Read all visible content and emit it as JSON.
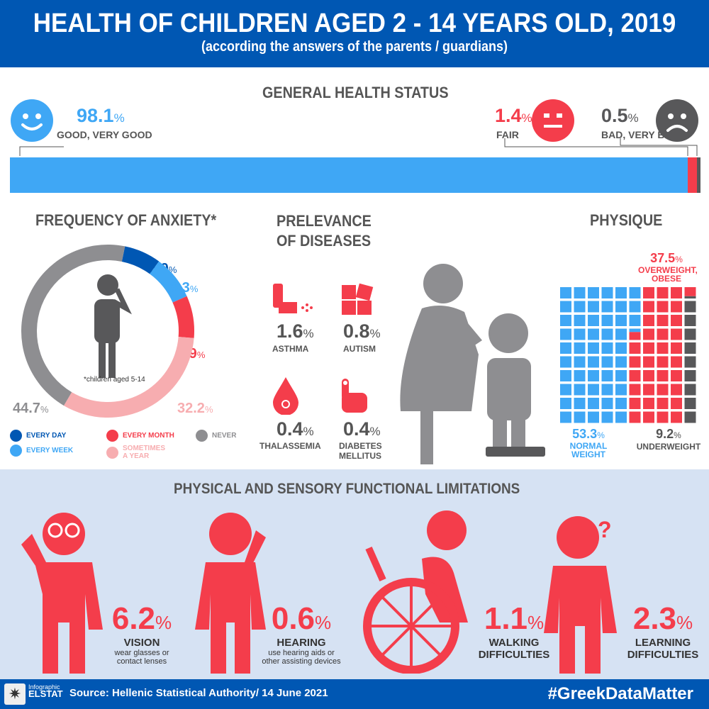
{
  "header": {
    "title": "HEALTH OF CHILDREN AGED 2 - 14 YEARS OLD, 2019",
    "subtitle": "(according the answers of the parents / guardians)"
  },
  "general": {
    "title": "GENERAL HEALTH STATUS",
    "good": {
      "value": "98.1",
      "unit": "%",
      "label": "GOOD, VERY GOOD"
    },
    "fair": {
      "value": "1.4",
      "unit": "%",
      "label": "FAIR"
    },
    "bad": {
      "value": "0.5",
      "unit": "%",
      "label": "BAD, VERY BAD"
    }
  },
  "anxiety": {
    "title": "FREQUENCY OF ANXIETY*",
    "note": "*children aged 5-14"
  },
  "diseases": {
    "title_line1": "PRELEVANCE",
    "title_line2": "OF DISEASES",
    "items": [
      {
        "value": "1.6",
        "unit": "%",
        "label": "ASTHMA"
      },
      {
        "value": "0.8",
        "unit": "%",
        "label": "AUTISM"
      },
      {
        "value": "0.4",
        "unit": "%",
        "label": "THALASSEMIA"
      },
      {
        "value": "0.4",
        "unit": "%",
        "label1": "DIABETES",
        "label2": "MELLITUS"
      }
    ]
  },
  "physique": {
    "title": "PHYSIQUE",
    "overweight": {
      "value": "37.5",
      "unit": "%",
      "label1": "OVERWEIGHT,",
      "label2": "OBESE"
    },
    "normal": {
      "value": "53.3",
      "unit": "%",
      "label1": "NORMAL",
      "label2": "WEIGHT"
    },
    "under": {
      "value": "9.2",
      "unit": "%",
      "label": "UNDERWEIGHT"
    }
  },
  "limitations": {
    "title": "PHYSICAL AND SENSORY FUNCTIONAL LIMITATIONS",
    "items": [
      {
        "value": "6.2",
        "unit": "%",
        "name": "VISION",
        "desc1": "wear glasses or",
        "desc2": "contact lenses"
      },
      {
        "value": "0.6",
        "unit": "%",
        "name": "HEARING",
        "desc1": "use hearing aids or",
        "desc2": "other assisting devices"
      },
      {
        "value": "1.1",
        "unit": "%",
        "name": "WALKING",
        "desc1": "DIFFICULTIES"
      },
      {
        "value": "2.3",
        "unit": "%",
        "name": "LEARNING",
        "desc1": "DIFFICULTIES"
      }
    ]
  },
  "footer": {
    "logo_top": "Infographic",
    "logo_bottom": "ELSTAT",
    "source": "Source: Hellenic Statistical Authority/ 14 June 2021",
    "hashtag": "#GreekDataMatter"
  },
  "colors": {
    "blue": "#0057b3",
    "light_blue": "#3fa7f5",
    "red": "#f43d4b",
    "pink": "#f7adb0",
    "gray": "#8e8e91",
    "dark": "#58585a"
  },
  "chart_data": [
    {
      "type": "bar",
      "title": "GENERAL HEALTH STATUS",
      "categories": [
        "GOOD, VERY GOOD",
        "FAIR",
        "BAD, VERY BAD"
      ],
      "values": [
        98.1,
        1.4,
        0.5
      ],
      "stacked": true
    },
    {
      "type": "pie",
      "title": "FREQUENCY OF ANXIETY*",
      "categories": [
        "EVERY DAY",
        "EVERY WEEK",
        "EVERY MONTH",
        "SOMETIMES A YEAR",
        "NEVER"
      ],
      "legend_labels": [
        "EVERY DAY",
        "EVERY WEEK",
        "EVERY MONTH",
        "SOMETIMES",
        "A YEAR",
        "NEVER"
      ],
      "values": [
        6.9,
        8.3,
        7.9,
        32.2,
        44.7
      ],
      "labels": [
        "6.9",
        "8.3",
        "7.9",
        "32.2",
        "44.7"
      ],
      "colors": [
        "#0057b3",
        "#3fa7f5",
        "#f43d4b",
        "#f7adb0",
        "#8e8e91"
      ]
    },
    {
      "type": "waffle",
      "title": "PHYSIQUE",
      "categories": [
        "NORMAL WEIGHT",
        "OVERWEIGHT, OBESE",
        "UNDERWEIGHT"
      ],
      "values": [
        53.3,
        37.5,
        9.2
      ],
      "colors": [
        "#3fa7f5",
        "#f43d4b",
        "#58585a"
      ]
    }
  ]
}
